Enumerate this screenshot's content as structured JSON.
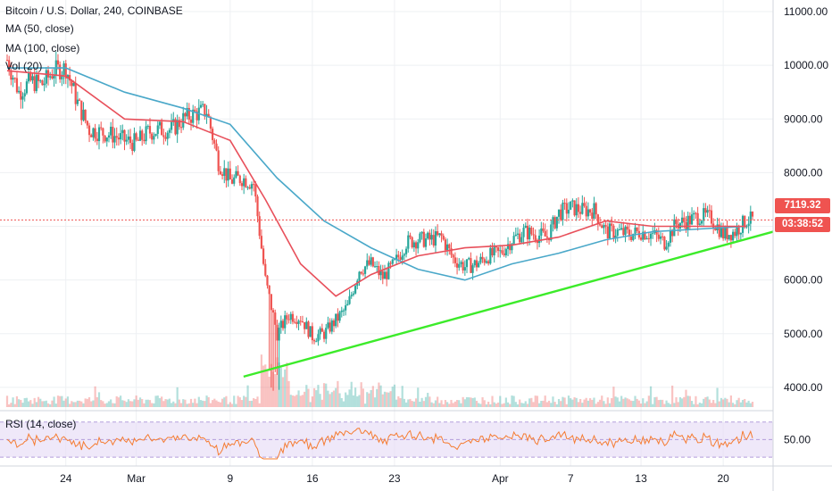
{
  "header": {
    "symbol": "Bitcoin / U.S. Dollar, 240, COINBASE",
    "ma50": "MA (50, close)",
    "ma100": "MA (100, close)",
    "vol": "Vol (20)",
    "rsi": "RSI (14, close)"
  },
  "price_labels": {
    "last_price": "7119.32",
    "countdown": "03:38:52"
  },
  "colors": {
    "up": "#26a69a",
    "down": "#ef5350",
    "ma50": "#e8505b",
    "ma100": "#4aa8c9",
    "trendline": "#3ceb2a",
    "rsi_line": "#f57c32",
    "rsi_band": "#e6dcf6",
    "rsi_bound": "#b39ddb",
    "grid": "#eef0f3",
    "axis_text": "#131722"
  },
  "chart_data": {
    "type": "candlestick",
    "x_ticks": [
      "24",
      "Mar",
      "9",
      "16",
      "23",
      "Apr",
      "7",
      "13",
      "20"
    ],
    "y_ticks": [
      "11000.00",
      "10000.00",
      "9000.00",
      "8000.00",
      "7000.00",
      "6000.00",
      "5000.00",
      "4000.00"
    ],
    "y_range": [
      3400,
      11100
    ],
    "rsi_ticks": [
      "50.00"
    ],
    "rsi_range": [
      25,
      85
    ],
    "close_path": [
      [
        "Feb 19",
        10100
      ],
      [
        "Feb 20",
        9500
      ],
      [
        "Feb 21",
        9700
      ],
      [
        "Feb 22",
        9650
      ],
      [
        "Feb 23",
        9900
      ],
      [
        "Feb 24",
        9950
      ],
      [
        "Feb 25",
        9300
      ],
      [
        "Feb 26",
        8800
      ],
      [
        "Feb 27",
        8750
      ],
      [
        "Feb 28",
        8700
      ],
      [
        "Feb 29",
        8600
      ],
      [
        "Mar 1",
        8550
      ],
      [
        "Mar 2",
        8750
      ],
      [
        "Mar 3",
        8800
      ],
      [
        "Mar 4",
        8800
      ],
      [
        "Mar 5",
        9000
      ],
      [
        "Mar 6",
        9100
      ],
      [
        "Mar 7",
        9150
      ],
      [
        "Mar 8",
        8200
      ],
      [
        "Mar 9",
        7850
      ],
      [
        "Mar 10",
        7900
      ],
      [
        "Mar 11",
        7800
      ],
      [
        "Mar 12",
        6000
      ],
      [
        "Mar 13",
        5000
      ],
      [
        "Mar 14",
        5350
      ],
      [
        "Mar 15",
        5300
      ],
      [
        "Mar 16",
        4950
      ],
      [
        "Mar 17",
        5000
      ],
      [
        "Mar 18",
        5250
      ],
      [
        "Mar 19",
        5500
      ],
      [
        "Mar 20",
        6200
      ],
      [
        "Mar 21",
        6300
      ],
      [
        "Mar 22",
        6050
      ],
      [
        "Mar 23",
        6300
      ],
      [
        "Mar 24",
        6700
      ],
      [
        "Mar 25",
        6750
      ],
      [
        "Mar 26",
        6750
      ],
      [
        "Mar 27",
        6800
      ],
      [
        "Mar 28",
        6400
      ],
      [
        "Mar 29",
        6250
      ],
      [
        "Mar 30",
        6300
      ],
      [
        "Mar 31",
        6450
      ],
      [
        "Apr 1",
        6500
      ],
      [
        "Apr 2",
        6750
      ],
      [
        "Apr 3",
        6900
      ],
      [
        "Apr 4",
        6850
      ],
      [
        "Apr 5",
        6800
      ],
      [
        "Apr 6",
        7250
      ],
      [
        "Apr 7",
        7350
      ],
      [
        "Apr 8",
        7300
      ],
      [
        "Apr 9",
        7300
      ],
      [
        "Apr 10",
        6900
      ],
      [
        "Apr 11",
        6900
      ],
      [
        "Apr 12",
        6850
      ],
      [
        "Apr 13",
        6900
      ],
      [
        "Apr 14",
        6850
      ],
      [
        "Apr 15",
        6700
      ],
      [
        "Apr 16",
        7050
      ],
      [
        "Apr 17",
        7100
      ],
      [
        "Apr 18",
        7200
      ],
      [
        "Apr 19",
        7150
      ],
      [
        "Apr 20",
        6850
      ],
      [
        "Apr 21",
        6900
      ],
      [
        "Apr 22",
        7119.32
      ]
    ],
    "ma50_path": [
      [
        "Feb 19",
        9900
      ],
      [
        "Feb 24",
        9800
      ],
      [
        "Feb 29",
        9000
      ],
      [
        "Mar 5",
        8950
      ],
      [
        "Mar 9",
        8600
      ],
      [
        "Mar 12",
        7500
      ],
      [
        "Mar 15",
        6300
      ],
      [
        "Mar 18",
        5700
      ],
      [
        "Mar 21",
        6100
      ],
      [
        "Mar 25",
        6450
      ],
      [
        "Mar 29",
        6600
      ],
      [
        "Apr 2",
        6650
      ],
      [
        "Apr 6",
        6800
      ],
      [
        "Apr 10",
        7100
      ],
      [
        "Apr 14",
        7000
      ],
      [
        "Apr 18",
        7000
      ],
      [
        "Apr 22",
        7000
      ]
    ],
    "ma100_path": [
      [
        "Feb 19",
        9950
      ],
      [
        "Feb 24",
        9950
      ],
      [
        "Feb 29",
        9500
      ],
      [
        "Mar 5",
        9200
      ],
      [
        "Mar 9",
        8900
      ],
      [
        "Mar 13",
        7900
      ],
      [
        "Mar 17",
        7100
      ],
      [
        "Mar 21",
        6600
      ],
      [
        "Mar 25",
        6200
      ],
      [
        "Mar 29",
        6000
      ],
      [
        "Apr 2",
        6300
      ],
      [
        "Apr 6",
        6500
      ],
      [
        "Apr 10",
        6750
      ],
      [
        "Apr 14",
        6900
      ],
      [
        "Apr 18",
        6950
      ],
      [
        "Apr 22",
        7000
      ]
    ],
    "trendline": [
      [
        "Mar 9",
        4200
      ],
      [
        "Apr 22",
        6900
      ]
    ],
    "last_price_line": 7119.32
  }
}
